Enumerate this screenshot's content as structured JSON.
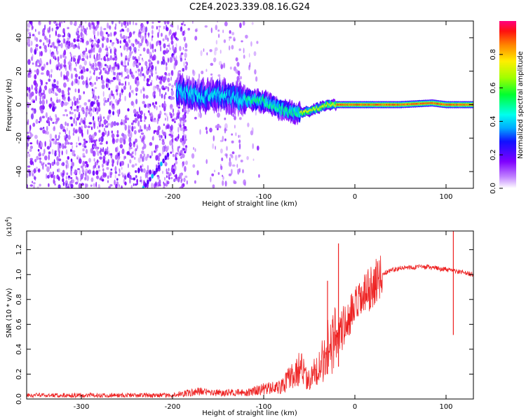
{
  "title": "C2E4.2023.339.08.16.G24",
  "chart_data": [
    {
      "type": "heatmap",
      "xlabel": "Height of straight line (km)",
      "ylabel": "Frequency (Hz)",
      "xlim": [
        -360,
        130
      ],
      "ylim": [
        -50,
        50
      ],
      "xticks": [
        -300,
        -200,
        -100,
        0,
        100
      ],
      "yticks": [
        -40,
        -20,
        0,
        20,
        40
      ],
      "colorbar": {
        "label": "Normalized spectral amplitude",
        "ticks": [
          "0.0",
          "0.2",
          "0.4",
          "0.6",
          "0.8"
        ],
        "range": [
          0,
          1
        ]
      },
      "features": {
        "noise_region_x": [
          -360,
          -120
        ],
        "dense_noise_end_x": -185,
        "signal_ridge": [
          {
            "x": -190,
            "y": 8
          },
          {
            "x": -170,
            "y": 5
          },
          {
            "x": -150,
            "y": 6
          },
          {
            "x": -120,
            "y": 3
          },
          {
            "x": -100,
            "y": 2
          },
          {
            "x": -80,
            "y": -3
          },
          {
            "x": -65,
            "y": -5
          },
          {
            "x": -50,
            "y": -4
          },
          {
            "x": -30,
            "y": 0
          },
          {
            "x": 0,
            "y": 0
          },
          {
            "x": 50,
            "y": 0
          },
          {
            "x": 85,
            "y": 1
          },
          {
            "x": 100,
            "y": 0
          },
          {
            "x": 130,
            "y": 0
          }
        ],
        "diagonal_streak": [
          {
            "x": -232,
            "y": -50
          },
          {
            "x": -205,
            "y": -30
          }
        ]
      }
    },
    {
      "type": "line",
      "xlabel": "Height of straight line (km)",
      "ylabel": "SNR (10 * v/v)",
      "scale_note": "(x10",
      "scale_exp": "4",
      "scale_close": ")",
      "xlim": [
        -360,
        130
      ],
      "ylim": [
        0,
        1.35
      ],
      "xticks": [
        -300,
        -200,
        -100,
        0,
        100
      ],
      "yticks": [
        "0.0",
        "0.2",
        "0.4",
        "0.6",
        "0.8",
        "1.0",
        "1.2"
      ],
      "series_color": "#ee2222",
      "envelope": [
        {
          "x": -360,
          "y": 0.03
        },
        {
          "x": -200,
          "y": 0.03
        },
        {
          "x": -170,
          "y": 0.06
        },
        {
          "x": -150,
          "y": 0.05
        },
        {
          "x": -120,
          "y": 0.05
        },
        {
          "x": -100,
          "y": 0.08
        },
        {
          "x": -80,
          "y": 0.1
        },
        {
          "x": -70,
          "y": 0.18
        },
        {
          "x": -60,
          "y": 0.25
        },
        {
          "x": -50,
          "y": 0.15
        },
        {
          "x": -40,
          "y": 0.25
        },
        {
          "x": -30,
          "y": 0.4
        },
        {
          "x": -20,
          "y": 0.5
        },
        {
          "x": -10,
          "y": 0.6
        },
        {
          "x": 0,
          "y": 0.72
        },
        {
          "x": 10,
          "y": 0.82
        },
        {
          "x": 20,
          "y": 0.92
        },
        {
          "x": 30,
          "y": 1.0
        },
        {
          "x": 40,
          "y": 1.04
        },
        {
          "x": 60,
          "y": 1.06
        },
        {
          "x": 80,
          "y": 1.06
        },
        {
          "x": 100,
          "y": 1.04
        },
        {
          "x": 115,
          "y": 1.02
        },
        {
          "x": 130,
          "y": 1.0
        }
      ],
      "spikes": [
        {
          "x": -18,
          "y": 1.25
        },
        {
          "x": -30,
          "y": 0.95
        },
        {
          "x": 108,
          "y": 1.35
        }
      ]
    }
  ]
}
